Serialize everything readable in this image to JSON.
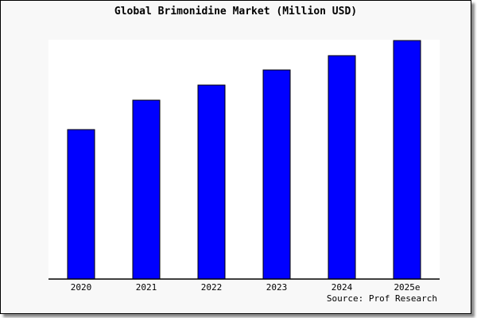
{
  "chart_data": {
    "type": "bar",
    "title": "Global Brimonidine Market (Million USD)",
    "categories": [
      "2020",
      "2021",
      "2022",
      "2023",
      "2024",
      "2025e"
    ],
    "values": [
      188,
      225,
      244,
      263,
      281,
      300
    ],
    "ylim": [
      0,
      300
    ],
    "xlabel": "",
    "ylabel": "",
    "grid": false,
    "bar_color": "#0000ff",
    "source": "Source: Prof Research"
  }
}
